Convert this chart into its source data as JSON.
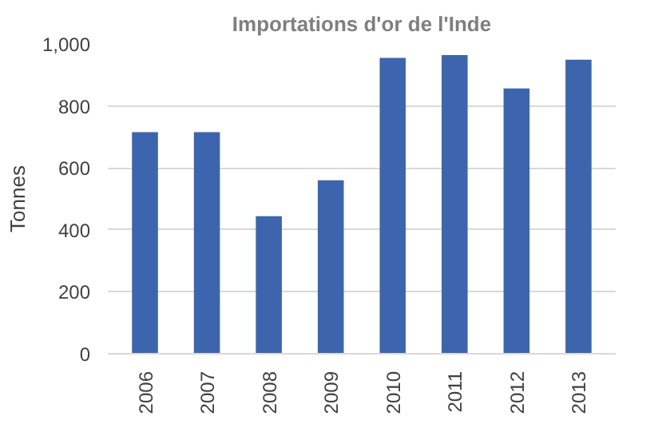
{
  "chart_data": {
    "type": "bar",
    "title": "Importations d'or de l'Inde",
    "ylabel": "Tonnes",
    "categories": [
      "2006",
      "2007",
      "2008",
      "2009",
      "2010",
      "2011",
      "2012",
      "2013"
    ],
    "values": [
      715,
      715,
      444,
      560,
      955,
      964,
      856,
      949
    ],
    "color": "#3d65ae",
    "ylim": [
      0,
      1000
    ],
    "yticks": [
      0,
      {
        "value": 200,
        "label": "200"
      },
      {
        "value": 400,
        "label": "400"
      },
      {
        "value": 600,
        "label": "600"
      },
      {
        "value": 800,
        "label": "800"
      },
      {
        "value": 1000,
        "label": "1,000"
      }
    ],
    "grid": "y"
  }
}
